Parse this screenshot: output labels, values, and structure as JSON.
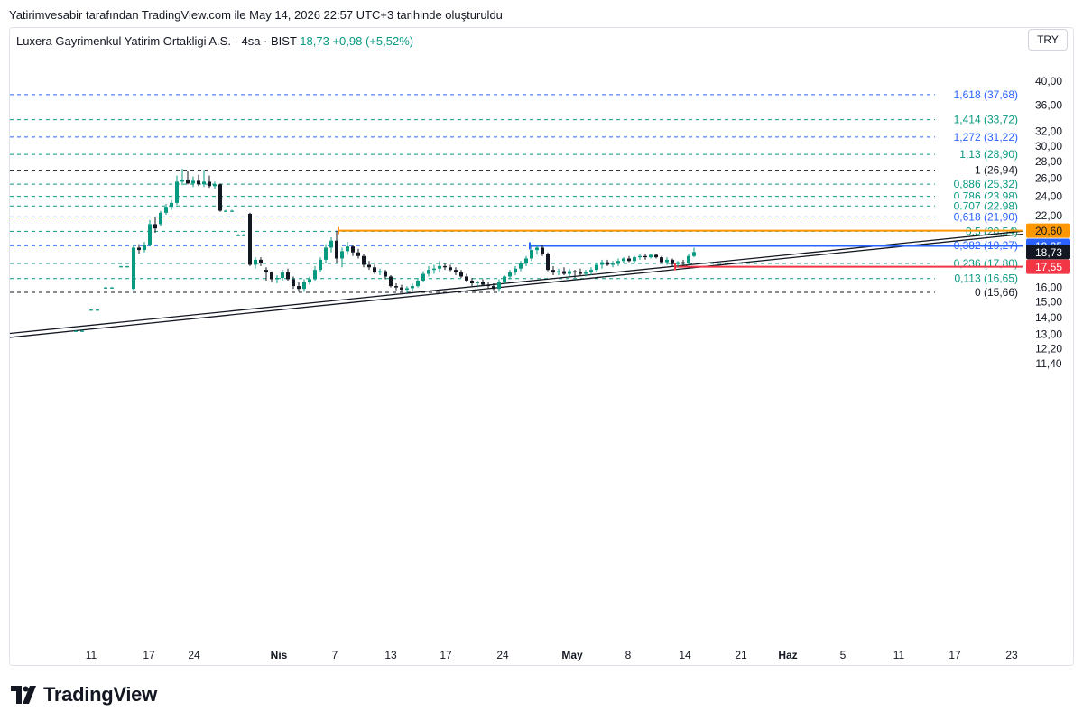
{
  "caption": "Yatirimvesabir tarafından TradingView.com ile May 14, 2026 22:57 UTC+3 tarihinde oluşturuldu",
  "legend": {
    "symbol": "Luxera Gayrimenkul Yatirim Ortakligi A.S. · 4sa · BIST",
    "price": "18,73",
    "change": "+0,98 (+5,52%)"
  },
  "currency_button": "TRY",
  "brand": {
    "name": "TradingView",
    "logo_icon": "tradingview-logo-icon"
  },
  "colors": {
    "up": "#089981",
    "down": "#131722",
    "fib_green": "#089981",
    "fib_blue": "#2962ff",
    "fib_black": "#131722",
    "orange": "#ff9800",
    "blue": "#2962ff",
    "red": "#f23645",
    "trend": "#131722"
  },
  "chart_data": {
    "type": "candlestick",
    "title": "",
    "price_axis": {
      "scale": "log",
      "range": [
        10.8,
        42.5
      ],
      "ticks": [
        "40,00",
        "36,00",
        "32,00",
        "30,00",
        "28,00",
        "26,00",
        "24,00",
        "22,00",
        "16,00",
        "15,00",
        "14,00",
        "13,00",
        "12,20",
        "11,40"
      ]
    },
    "time_axis": {
      "labels": [
        "11",
        "17",
        "24",
        "Nis",
        "7",
        "13",
        "17",
        "24",
        "May",
        "8",
        "14",
        "21",
        "Haz",
        "5",
        "11",
        "17",
        "23"
      ],
      "bold": [
        "Nis",
        "May",
        "Haz"
      ]
    },
    "fib_levels": [
      {
        "label": "1,618 (37,68)",
        "price": 37.68,
        "color": "blue",
        "style": "dashed"
      },
      {
        "label": "1,414 (33,72)",
        "price": 33.72,
        "color": "green",
        "style": "dashed"
      },
      {
        "label": "1,272 (31,22)",
        "price": 31.22,
        "color": "blue",
        "style": "dashed"
      },
      {
        "label": "1,13 (28,90)",
        "price": 28.9,
        "color": "green",
        "style": "dashed"
      },
      {
        "label": "1 (26,94)",
        "price": 26.94,
        "color": "black",
        "style": "dashed"
      },
      {
        "label": "0,886 (25,32)",
        "price": 25.32,
        "color": "green",
        "style": "dashed"
      },
      {
        "label": "0,786 (23,98)",
        "price": 23.98,
        "color": "green",
        "style": "dashed"
      },
      {
        "label": "0,707 (22,98)",
        "price": 22.98,
        "color": "green",
        "style": "dashed"
      },
      {
        "label": "0,618 (21,90)",
        "price": 21.9,
        "color": "blue",
        "style": "dashed"
      },
      {
        "label": "0,5 (20,54)",
        "price": 20.54,
        "color": "green",
        "style": "dashed"
      },
      {
        "label": "0,382 (19,27)",
        "price": 19.27,
        "color": "blue",
        "style": "dashed"
      },
      {
        "label": "0,236 (17,80)",
        "price": 17.8,
        "color": "green",
        "style": "dashed"
      },
      {
        "label": "0,113 (16,65)",
        "price": 16.65,
        "color": "green",
        "style": "dashed"
      },
      {
        "label": "0 (15,66)",
        "price": 15.66,
        "color": "black",
        "style": "dashed"
      }
    ],
    "horizontal_lines": [
      {
        "price": 20.6,
        "color": "orange",
        "label": "20,60",
        "from_date": "Apr 7"
      },
      {
        "price": 19.25,
        "color": "blue",
        "label": "19,25",
        "from_date": "Apr 27"
      },
      {
        "price": 17.55,
        "color": "red",
        "label": "17,55",
        "from_date": "May 13"
      }
    ],
    "last_price": {
      "value": 18.73,
      "label": "18,73"
    },
    "trendlines": [
      {
        "from": {
          "date": "Mar 2",
          "price": 13.05
        },
        "to": {
          "date": "Jun 23",
          "price": 20.55
        }
      },
      {
        "from": {
          "date": "Mar 2",
          "price": 12.82
        },
        "to": {
          "date": "Jun 23",
          "price": 20.28
        }
      }
    ],
    "series": [
      {
        "name": "Luxera Gayrimenkul Yatirim Ortakligi A.S.",
        "candles": [
          {
            "x": 84,
            "o": 13.2,
            "h": 13.25,
            "l": 13.15,
            "c": 13.2
          },
          {
            "x": 91,
            "o": 13.2,
            "h": 13.25,
            "l": 13.15,
            "c": 13.2
          },
          {
            "x": 101,
            "o": 14.5,
            "h": 14.55,
            "l": 14.45,
            "c": 14.5
          },
          {
            "x": 108,
            "o": 14.5,
            "h": 14.55,
            "l": 14.45,
            "c": 14.5
          },
          {
            "x": 117,
            "o": 16.0,
            "h": 16.05,
            "l": 15.95,
            "c": 16.0
          },
          {
            "x": 124,
            "o": 16.0,
            "h": 16.05,
            "l": 15.95,
            "c": 16.0
          },
          {
            "x": 134,
            "o": 17.58,
            "h": 17.62,
            "l": 17.55,
            "c": 17.58
          },
          {
            "x": 141,
            "o": 17.58,
            "h": 17.62,
            "l": 17.55,
            "c": 17.58
          },
          {
            "x": 148,
            "o": 15.9,
            "h": 19.3,
            "l": 15.8,
            "c": 19.1
          },
          {
            "x": 154,
            "o": 19.1,
            "h": 19.4,
            "l": 18.6,
            "c": 18.9
          },
          {
            "x": 160,
            "o": 18.9,
            "h": 19.6,
            "l": 18.7,
            "c": 19.3
          },
          {
            "x": 166,
            "o": 19.3,
            "h": 21.6,
            "l": 19.2,
            "c": 21.2
          },
          {
            "x": 172,
            "o": 21.2,
            "h": 21.9,
            "l": 20.4,
            "c": 20.8
          },
          {
            "x": 178,
            "o": 21.2,
            "h": 22.5,
            "l": 21.0,
            "c": 22.3
          },
          {
            "x": 184,
            "o": 22.3,
            "h": 23.2,
            "l": 22.1,
            "c": 22.9
          },
          {
            "x": 190,
            "o": 22.9,
            "h": 23.6,
            "l": 22.6,
            "c": 23.3
          },
          {
            "x": 196,
            "o": 23.3,
            "h": 26.3,
            "l": 23.1,
            "c": 25.6
          },
          {
            "x": 202,
            "o": 25.6,
            "h": 27.1,
            "l": 25.2,
            "c": 25.8
          },
          {
            "x": 208,
            "o": 25.8,
            "h": 26.9,
            "l": 25.3,
            "c": 25.4
          },
          {
            "x": 214,
            "o": 25.4,
            "h": 26.2,
            "l": 25.0,
            "c": 25.7
          },
          {
            "x": 220,
            "o": 25.7,
            "h": 26.4,
            "l": 25.1,
            "c": 25.3
          },
          {
            "x": 226,
            "o": 25.3,
            "h": 27.0,
            "l": 25.0,
            "c": 25.6
          },
          {
            "x": 232,
            "o": 25.6,
            "h": 26.3,
            "l": 24.9,
            "c": 25.1
          },
          {
            "x": 238,
            "o": 25.1,
            "h": 25.6,
            "l": 24.8,
            "c": 25.3
          },
          {
            "x": 244,
            "o": 25.3,
            "h": 25.4,
            "l": 22.4,
            "c": 22.5
          },
          {
            "x": 250,
            "o": 22.5,
            "h": 22.6,
            "l": 22.4,
            "c": 22.5
          },
          {
            "x": 257,
            "o": 22.5,
            "h": 22.6,
            "l": 22.4,
            "c": 22.5
          },
          {
            "x": 264,
            "o": 20.2,
            "h": 20.3,
            "l": 20.1,
            "c": 20.2
          },
          {
            "x": 270,
            "o": 20.2,
            "h": 20.3,
            "l": 20.1,
            "c": 20.2
          },
          {
            "x": 277,
            "o": 22.2,
            "h": 22.3,
            "l": 17.6,
            "c": 17.7
          },
          {
            "x": 283,
            "o": 17.7,
            "h": 18.3,
            "l": 17.4,
            "c": 18.1
          },
          {
            "x": 289,
            "o": 18.1,
            "h": 18.3,
            "l": 17.6,
            "c": 17.8
          },
          {
            "x": 295,
            "o": 17.3,
            "h": 17.5,
            "l": 16.5,
            "c": 17.1
          },
          {
            "x": 301,
            "o": 17.1,
            "h": 17.2,
            "l": 16.4,
            "c": 16.6
          },
          {
            "x": 307,
            "o": 16.6,
            "h": 16.9,
            "l": 16.3,
            "c": 16.7
          },
          {
            "x": 313,
            "o": 16.7,
            "h": 17.3,
            "l": 16.5,
            "c": 17.1
          },
          {
            "x": 319,
            "o": 17.1,
            "h": 17.4,
            "l": 16.5,
            "c": 16.6
          },
          {
            "x": 325,
            "o": 16.6,
            "h": 16.8,
            "l": 15.9,
            "c": 16.1
          },
          {
            "x": 331,
            "o": 16.1,
            "h": 16.4,
            "l": 15.7,
            "c": 15.9
          },
          {
            "x": 337,
            "o": 15.9,
            "h": 16.6,
            "l": 15.7,
            "c": 16.4
          },
          {
            "x": 343,
            "o": 16.4,
            "h": 16.8,
            "l": 16.2,
            "c": 16.6
          },
          {
            "x": 349,
            "o": 16.6,
            "h": 17.6,
            "l": 16.5,
            "c": 17.3
          },
          {
            "x": 355,
            "o": 17.3,
            "h": 18.3,
            "l": 17.1,
            "c": 18.1
          },
          {
            "x": 361,
            "o": 18.1,
            "h": 19.4,
            "l": 17.8,
            "c": 19.1
          },
          {
            "x": 367,
            "o": 19.1,
            "h": 20.0,
            "l": 18.7,
            "c": 19.7
          },
          {
            "x": 373,
            "o": 19.7,
            "h": 20.6,
            "l": 17.8,
            "c": 18.2
          },
          {
            "x": 379,
            "o": 18.2,
            "h": 19.1,
            "l": 17.5,
            "c": 18.8
          },
          {
            "x": 385,
            "o": 18.8,
            "h": 19.6,
            "l": 18.5,
            "c": 19.2
          },
          {
            "x": 391,
            "o": 19.2,
            "h": 19.3,
            "l": 18.4,
            "c": 18.7
          },
          {
            "x": 397,
            "o": 18.7,
            "h": 19.0,
            "l": 18.2,
            "c": 18.4
          },
          {
            "x": 403,
            "o": 18.4,
            "h": 18.6,
            "l": 17.5,
            "c": 17.7
          },
          {
            "x": 409,
            "o": 17.7,
            "h": 18.0,
            "l": 17.3,
            "c": 17.5
          },
          {
            "x": 415,
            "o": 17.5,
            "h": 17.7,
            "l": 17.0,
            "c": 17.1
          },
          {
            "x": 421,
            "o": 17.1,
            "h": 17.4,
            "l": 16.9,
            "c": 17.2
          },
          {
            "x": 427,
            "o": 17.2,
            "h": 17.3,
            "l": 16.6,
            "c": 16.8
          },
          {
            "x": 433,
            "o": 16.8,
            "h": 16.9,
            "l": 16.0,
            "c": 16.1
          },
          {
            "x": 439,
            "o": 16.1,
            "h": 16.3,
            "l": 15.8,
            "c": 16.0
          },
          {
            "x": 445,
            "o": 16.0,
            "h": 16.2,
            "l": 15.7,
            "c": 15.85
          },
          {
            "x": 451,
            "o": 15.85,
            "h": 16.1,
            "l": 15.6,
            "c": 15.95
          },
          {
            "x": 457,
            "o": 15.95,
            "h": 16.3,
            "l": 15.7,
            "c": 16.1
          },
          {
            "x": 463,
            "o": 16.1,
            "h": 16.7,
            "l": 16.0,
            "c": 16.5
          },
          {
            "x": 469,
            "o": 16.5,
            "h": 17.2,
            "l": 16.4,
            "c": 17.0
          },
          {
            "x": 475,
            "o": 17.0,
            "h": 17.6,
            "l": 16.8,
            "c": 17.3
          },
          {
            "x": 481,
            "o": 17.3,
            "h": 17.7,
            "l": 17.0,
            "c": 17.4
          },
          {
            "x": 487,
            "o": 17.4,
            "h": 18.0,
            "l": 17.1,
            "c": 17.6
          },
          {
            "x": 493,
            "o": 17.6,
            "h": 17.8,
            "l": 17.3,
            "c": 17.5
          },
          {
            "x": 499,
            "o": 17.5,
            "h": 17.7,
            "l": 17.2,
            "c": 17.3
          },
          {
            "x": 505,
            "o": 17.3,
            "h": 17.5,
            "l": 16.9,
            "c": 17.1
          },
          {
            "x": 511,
            "o": 17.1,
            "h": 17.3,
            "l": 16.7,
            "c": 16.8
          },
          {
            "x": 517,
            "o": 16.8,
            "h": 17.0,
            "l": 16.4,
            "c": 16.5
          },
          {
            "x": 523,
            "o": 16.5,
            "h": 16.7,
            "l": 16.1,
            "c": 16.3
          },
          {
            "x": 529,
            "o": 16.3,
            "h": 16.5,
            "l": 16.0,
            "c": 16.4
          },
          {
            "x": 535,
            "o": 16.4,
            "h": 16.6,
            "l": 16.1,
            "c": 16.2
          },
          {
            "x": 541,
            "o": 16.2,
            "h": 16.4,
            "l": 15.9,
            "c": 16.1
          },
          {
            "x": 547,
            "o": 16.1,
            "h": 16.3,
            "l": 15.8,
            "c": 15.9
          },
          {
            "x": 553,
            "o": 15.9,
            "h": 16.6,
            "l": 15.7,
            "c": 16.4
          },
          {
            "x": 559,
            "o": 16.4,
            "h": 16.9,
            "l": 16.2,
            "c": 16.8
          },
          {
            "x": 565,
            "o": 16.8,
            "h": 17.3,
            "l": 16.6,
            "c": 17.1
          },
          {
            "x": 571,
            "o": 17.1,
            "h": 17.6,
            "l": 16.9,
            "c": 17.4
          },
          {
            "x": 577,
            "o": 17.4,
            "h": 18.0,
            "l": 17.2,
            "c": 17.8
          },
          {
            "x": 583,
            "o": 17.8,
            "h": 18.4,
            "l": 17.6,
            "c": 18.2
          },
          {
            "x": 589,
            "o": 18.2,
            "h": 19.3,
            "l": 18.0,
            "c": 18.9
          },
          {
            "x": 595,
            "o": 18.9,
            "h": 19.3,
            "l": 18.5,
            "c": 19.1
          },
          {
            "x": 601,
            "o": 19.1,
            "h": 19.3,
            "l": 18.4,
            "c": 18.6
          },
          {
            "x": 607,
            "o": 18.6,
            "h": 18.7,
            "l": 17.2,
            "c": 17.3
          },
          {
            "x": 613,
            "o": 17.3,
            "h": 17.6,
            "l": 16.9,
            "c": 17.1
          },
          {
            "x": 619,
            "o": 17.1,
            "h": 17.4,
            "l": 16.9,
            "c": 17.2
          },
          {
            "x": 625,
            "o": 17.2,
            "h": 17.5,
            "l": 16.9,
            "c": 17.0
          },
          {
            "x": 631,
            "o": 17.0,
            "h": 17.4,
            "l": 16.8,
            "c": 17.2
          },
          {
            "x": 637,
            "o": 17.2,
            "h": 17.3,
            "l": 16.7,
            "c": 17.1
          },
          {
            "x": 643,
            "o": 17.1,
            "h": 17.4,
            "l": 16.9,
            "c": 17.0
          },
          {
            "x": 649,
            "o": 17.0,
            "h": 17.3,
            "l": 16.8,
            "c": 17.1
          },
          {
            "x": 655,
            "o": 17.1,
            "h": 17.5,
            "l": 16.9,
            "c": 17.3
          },
          {
            "x": 661,
            "o": 17.3,
            "h": 17.9,
            "l": 17.1,
            "c": 17.7
          },
          {
            "x": 667,
            "o": 17.7,
            "h": 18.1,
            "l": 17.4,
            "c": 17.9
          },
          {
            "x": 673,
            "o": 17.9,
            "h": 18.1,
            "l": 17.6,
            "c": 17.7
          },
          {
            "x": 679,
            "o": 17.7,
            "h": 18.0,
            "l": 17.5,
            "c": 17.8
          },
          {
            "x": 685,
            "o": 17.8,
            "h": 18.2,
            "l": 17.6,
            "c": 18.0
          },
          {
            "x": 691,
            "o": 18.0,
            "h": 18.3,
            "l": 17.8,
            "c": 18.2
          },
          {
            "x": 697,
            "o": 18.2,
            "h": 18.4,
            "l": 17.9,
            "c": 18.0
          },
          {
            "x": 703,
            "o": 18.0,
            "h": 18.4,
            "l": 17.8,
            "c": 18.3
          },
          {
            "x": 709,
            "o": 18.3,
            "h": 18.6,
            "l": 18.1,
            "c": 18.4
          },
          {
            "x": 715,
            "o": 18.4,
            "h": 18.6,
            "l": 18.1,
            "c": 18.3
          },
          {
            "x": 721,
            "o": 18.3,
            "h": 18.6,
            "l": 18.2,
            "c": 18.5
          },
          {
            "x": 727,
            "o": 18.5,
            "h": 18.6,
            "l": 18.2,
            "c": 18.3
          },
          {
            "x": 733,
            "o": 18.3,
            "h": 18.4,
            "l": 17.8,
            "c": 17.9
          },
          {
            "x": 739,
            "o": 17.9,
            "h": 18.3,
            "l": 17.7,
            "c": 18.1
          },
          {
            "x": 745,
            "o": 18.1,
            "h": 18.2,
            "l": 17.6,
            "c": 17.75
          },
          {
            "x": 751,
            "o": 17.75,
            "h": 18.0,
            "l": 17.5,
            "c": 17.9
          },
          {
            "x": 757,
            "o": 17.9,
            "h": 18.1,
            "l": 17.6,
            "c": 17.8
          },
          {
            "x": 763,
            "o": 17.8,
            "h": 18.6,
            "l": 17.7,
            "c": 18.4
          },
          {
            "x": 769,
            "o": 18.4,
            "h": 19.1,
            "l": 18.3,
            "c": 18.73
          }
        ]
      }
    ]
  }
}
